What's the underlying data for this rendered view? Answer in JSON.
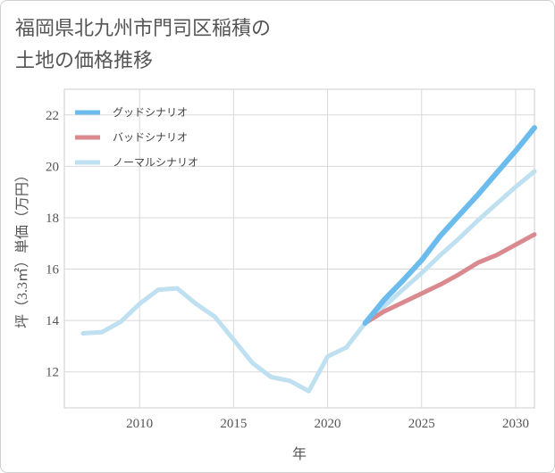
{
  "title_line1": "福岡県北九州市門司区稲積の",
  "title_line2": "土地の価格推移",
  "chart_data": {
    "type": "line",
    "xlabel": "年",
    "ylabel": "坪（3.3㎡）単価（万円）",
    "xlim": [
      2006,
      2031
    ],
    "ylim": [
      10.6,
      23.0
    ],
    "xticks": [
      2010,
      2015,
      2020,
      2025,
      2030
    ],
    "yticks": [
      12,
      14,
      16,
      18,
      20,
      22
    ],
    "grid": true,
    "legend_position": "top-left",
    "series": [
      {
        "name": "グッドシナリオ",
        "color": "#6bbcec",
        "width": 6,
        "x": [
          2022,
          2023,
          2024,
          2025,
          2026,
          2027,
          2028,
          2029,
          2030,
          2031
        ],
        "y": [
          13.9,
          14.8,
          15.55,
          16.35,
          17.3,
          18.1,
          18.9,
          19.75,
          20.6,
          21.5
        ]
      },
      {
        "name": "バッドシナリオ",
        "color": "#da8a8f",
        "width": 5,
        "x": [
          2022,
          2023,
          2024,
          2025,
          2026,
          2027,
          2028,
          2029,
          2030,
          2031
        ],
        "y": [
          13.9,
          14.35,
          14.7,
          15.05,
          15.4,
          15.8,
          16.25,
          16.55,
          16.95,
          17.35
        ]
      },
      {
        "name": "ノーマルシナリオ",
        "color": "#bfe0f0",
        "width": 5,
        "x": [
          2007,
          2008,
          2009,
          2010,
          2011,
          2012,
          2013,
          2014,
          2015,
          2016,
          2017,
          2018,
          2019,
          2020,
          2021,
          2022,
          2023,
          2024,
          2025,
          2026,
          2027,
          2028,
          2029,
          2030,
          2031
        ],
        "y": [
          13.5,
          13.55,
          13.95,
          14.65,
          15.2,
          15.25,
          14.65,
          14.15,
          13.25,
          12.35,
          11.8,
          11.65,
          11.25,
          12.6,
          12.95,
          13.9,
          14.55,
          15.2,
          15.85,
          16.55,
          17.2,
          17.9,
          18.55,
          19.2,
          19.8
        ]
      }
    ]
  }
}
